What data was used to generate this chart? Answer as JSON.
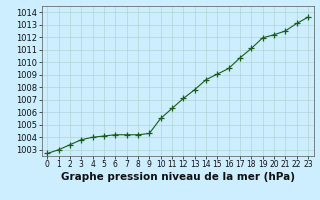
{
  "x": [
    0,
    1,
    2,
    3,
    4,
    5,
    6,
    7,
    8,
    9,
    10,
    11,
    12,
    13,
    14,
    15,
    16,
    17,
    18,
    19,
    20,
    21,
    22,
    23
  ],
  "y": [
    1002.7,
    1003.0,
    1003.4,
    1003.8,
    1004.0,
    1004.1,
    1004.2,
    1004.2,
    1004.2,
    1004.3,
    1005.5,
    1006.3,
    1007.1,
    1007.8,
    1008.6,
    1009.05,
    1009.5,
    1010.35,
    1011.1,
    1011.95,
    1012.2,
    1012.5,
    1013.1,
    1013.6
  ],
  "line_color": "#1a5c1a",
  "marker_color": "#1a5c1a",
  "bg_color": "#cceeff",
  "grid_color": "#aacccc",
  "title": "Graphe pression niveau de la mer (hPa)",
  "xlim_min": -0.5,
  "xlim_max": 23.5,
  "ylim_min": 1002.5,
  "ylim_max": 1014.5,
  "yticks": [
    1003,
    1004,
    1005,
    1006,
    1007,
    1008,
    1009,
    1010,
    1011,
    1012,
    1013,
    1014
  ],
  "xticks": [
    0,
    1,
    2,
    3,
    4,
    5,
    6,
    7,
    8,
    9,
    10,
    11,
    12,
    13,
    14,
    15,
    16,
    17,
    18,
    19,
    20,
    21,
    22,
    23
  ],
  "title_fontsize": 7.5,
  "ytick_fontsize": 6.0,
  "xtick_fontsize": 5.5,
  "title_fontweight": "bold",
  "line_width": 0.8,
  "marker_size": 4,
  "marker_ew": 0.9
}
